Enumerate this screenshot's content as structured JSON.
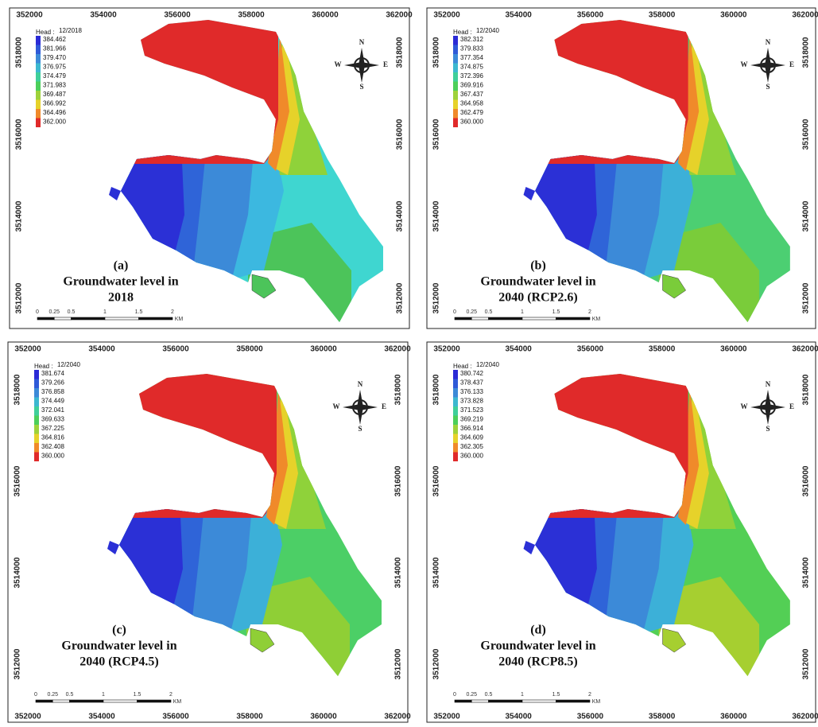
{
  "panels": [
    {
      "label": "(a)",
      "caption": [
        "Groundwater level in",
        "2018"
      ],
      "legend_title": "Head :",
      "legend_date": "12/2018",
      "legend_values": [
        "384.462",
        "381.966",
        "379.470",
        "376.975",
        "374.479",
        "371.983",
        "369.487",
        "366.992",
        "364.496",
        "362.000"
      ],
      "x_ticks": [
        "352000",
        "354000",
        "356000",
        "358000",
        "360000",
        "362000"
      ],
      "y_ticks": [
        "3512000",
        "3514000",
        "3516000",
        "3518000"
      ],
      "scale_labels": [
        "0",
        "0.25",
        "0.5",
        "1",
        "1.5",
        "2",
        "KM"
      ],
      "compass": [
        "N",
        "S",
        "W",
        "E"
      ]
    },
    {
      "label": "(b)",
      "caption": [
        "Groundwater level in",
        "2040 (RCP2.6)"
      ],
      "legend_title": "Head :",
      "legend_date": "12/2040",
      "legend_values": [
        "382.312",
        "379.833",
        "377.354",
        "374.875",
        "372.396",
        "369.916",
        "367.437",
        "364.958",
        "362.479",
        "360.000"
      ],
      "x_ticks": [
        "352000",
        "354000",
        "356000",
        "358000",
        "360000",
        "362000"
      ],
      "y_ticks": [
        "3512000",
        "3514000",
        "3516000",
        "3518000"
      ],
      "scale_labels": [
        "0",
        "0.25",
        "0.5",
        "1",
        "1.5",
        "2",
        "KM"
      ],
      "compass": [
        "N",
        "S",
        "W",
        "E"
      ]
    },
    {
      "label": "(c)",
      "caption": [
        "Groundwater level in",
        "2040 (RCP4.5)"
      ],
      "legend_title": "Head :",
      "legend_date": "12/2040",
      "legend_values": [
        "381.674",
        "379.266",
        "376.858",
        "374.449",
        "372.041",
        "369.633",
        "367.225",
        "364.816",
        "362.408",
        "360.000"
      ],
      "x_ticks": [
        "352000",
        "354000",
        "356000",
        "358000",
        "360000",
        "362000"
      ],
      "y_ticks": [
        "3512000",
        "3514000",
        "3516000",
        "3518000"
      ],
      "scale_labels": [
        "0",
        "0.25",
        "0.5",
        "1",
        "1.5",
        "2",
        "KM"
      ],
      "compass": [
        "N",
        "S",
        "W",
        "E"
      ]
    },
    {
      "label": "(d)",
      "caption": [
        "Groundwater level in",
        "2040 (RCP8.5)"
      ],
      "legend_title": "Head :",
      "legend_date": "12/2040",
      "legend_values": [
        "380.742",
        "378.437",
        "376.133",
        "373.828",
        "371.523",
        "369.219",
        "366.914",
        "364.609",
        "362.305",
        "360.000"
      ],
      "x_ticks": [
        "352000",
        "354000",
        "356000",
        "358000",
        "360000",
        "362000"
      ],
      "y_ticks": [
        "3512000",
        "3514000",
        "3516000",
        "3518000"
      ],
      "scale_labels": [
        "0",
        "0.25",
        "0.5",
        "1",
        "1.5",
        "2",
        "KM"
      ],
      "compass": [
        "N",
        "S",
        "W",
        "E"
      ]
    }
  ]
}
